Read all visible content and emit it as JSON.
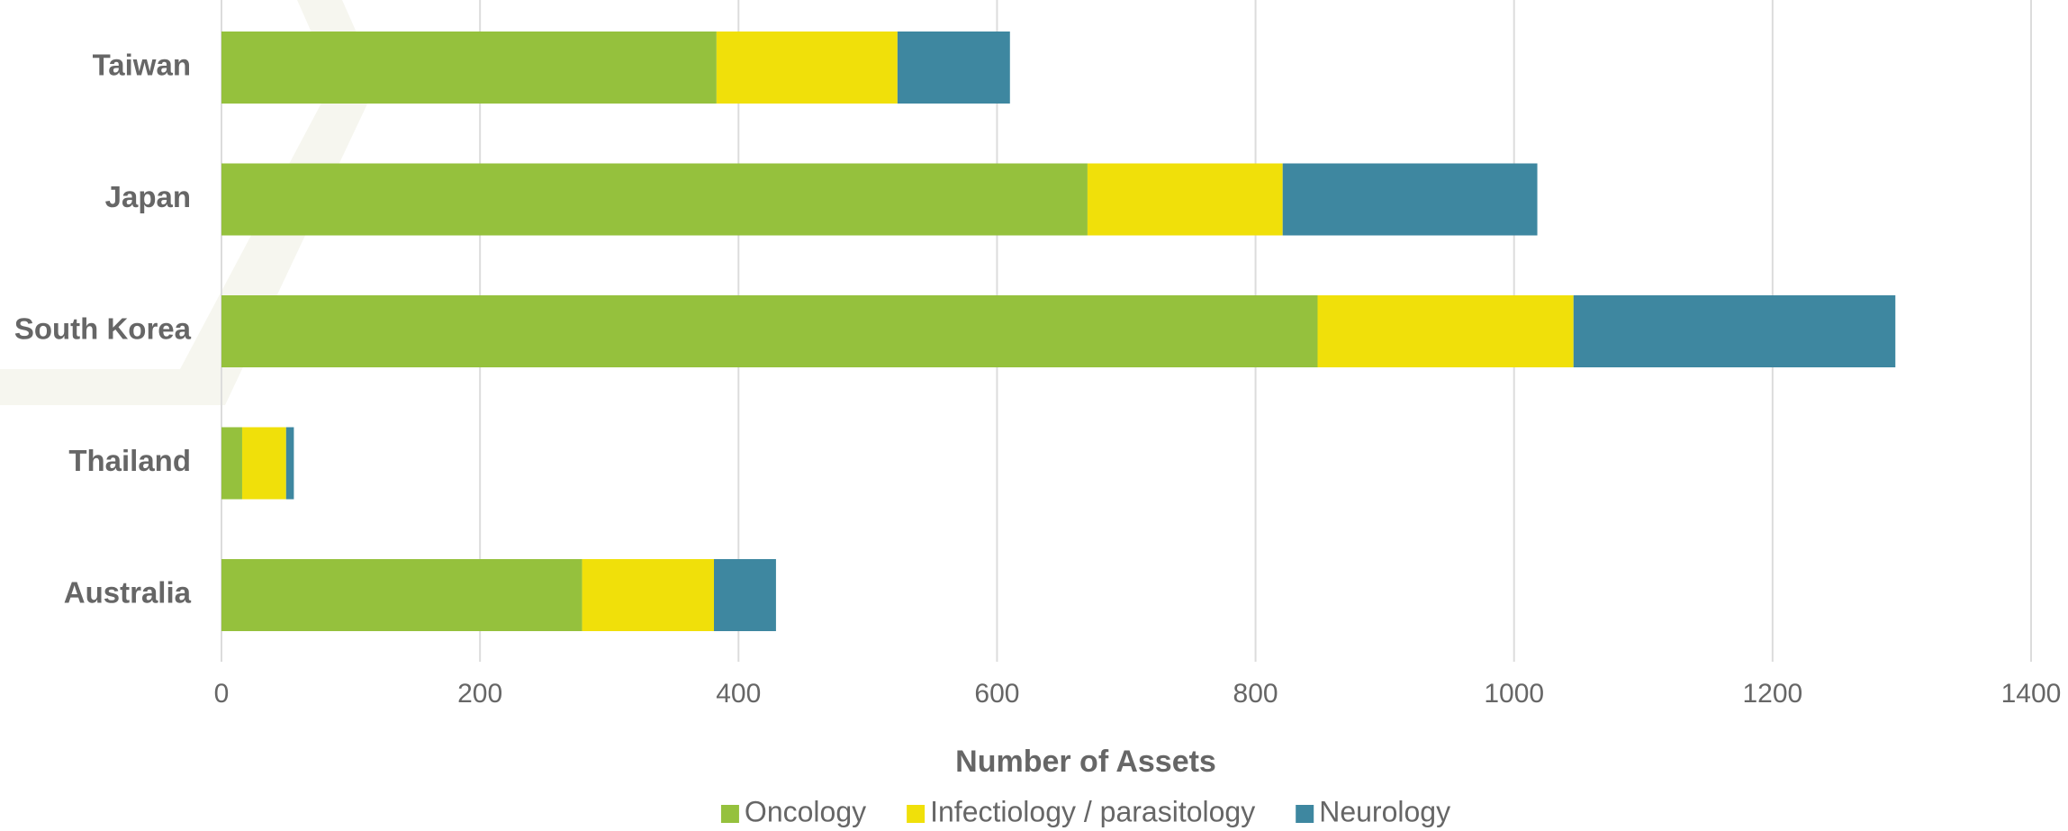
{
  "chart_data": {
    "type": "stacked_bar_horizontal",
    "xlabel": "Number of Assets",
    "categories": [
      "Taiwan",
      "Japan",
      "South Korea",
      "Thailand",
      "Australia"
    ],
    "series": [
      {
        "name": "Oncology",
        "color": "#95c13d",
        "values": [
          383,
          670,
          848,
          16,
          279
        ]
      },
      {
        "name": "Infectiology / parasitology",
        "color": "#f0e00a",
        "values": [
          140,
          151,
          198,
          34,
          102
        ]
      },
      {
        "name": "Neurology",
        "color": "#3e87a0",
        "values": [
          87,
          197,
          249,
          6,
          48
        ]
      }
    ],
    "xlim": [
      0,
      1400
    ],
    "xticks": [
      0,
      200,
      400,
      600,
      800,
      1000,
      1200,
      1400
    ],
    "grid": true,
    "legend": "bottom"
  }
}
